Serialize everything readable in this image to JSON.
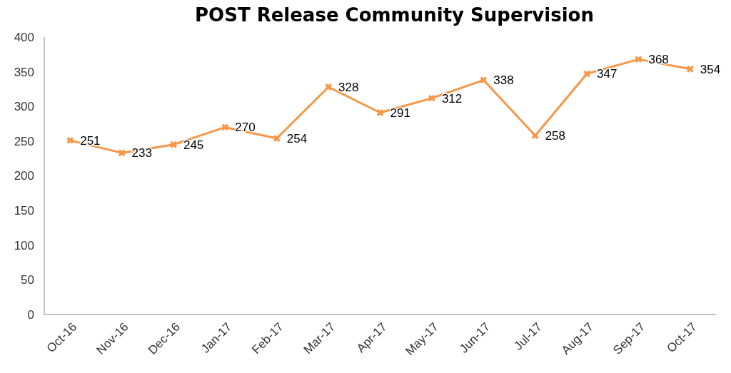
{
  "chart_data": {
    "type": "line",
    "title": "POST Release Community Supervision",
    "categories": [
      "Oct-16",
      "Nov-16",
      "Dec-16",
      "Jan-17",
      "Feb-17",
      "Mar-17",
      "Apr-17",
      "May-17",
      "Jun-17",
      "Jul-17",
      "Aug-17",
      "Sep-17",
      "Oct-17"
    ],
    "values": [
      251,
      233,
      245,
      270,
      254,
      328,
      291,
      312,
      338,
      258,
      347,
      368,
      354
    ],
    "color": "#f79646",
    "marker": "cross",
    "line_style": "solid",
    "data_labels": true,
    "grid": false,
    "ylim": [
      0,
      400
    ],
    "yticks": [
      0,
      50,
      100,
      150,
      200,
      250,
      300,
      350,
      400
    ]
  }
}
